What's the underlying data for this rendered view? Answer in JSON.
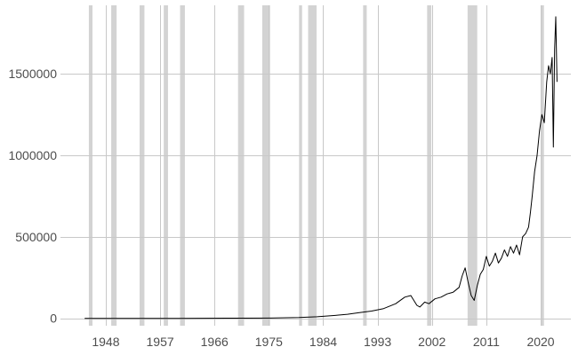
{
  "chart_data": {
    "type": "line",
    "title": "",
    "xlabel": "",
    "ylabel": "",
    "xlim": [
      1940.5,
      2025
    ],
    "ylim": [
      -45000,
      1920000
    ],
    "grid": true,
    "legend": "none",
    "x_ticks": [
      1948,
      1957,
      1966,
      1975,
      1984,
      1993,
      2002,
      2011,
      2020
    ],
    "x_tick_labels": [
      "1948",
      "1957",
      "1966",
      "1975",
      "1984",
      "1993",
      "2002",
      "2011",
      "2020"
    ],
    "y_ticks": [
      0,
      500000,
      1000000,
      1500000
    ],
    "y_tick_labels": [
      "0",
      "500000",
      "1000000",
      "1500000"
    ],
    "recession_bands": [
      [
        1945.2,
        1945.8
      ],
      [
        1948.9,
        1949.8
      ],
      [
        1953.6,
        1954.4
      ],
      [
        1957.6,
        1958.3
      ],
      [
        1960.3,
        1961.1
      ],
      [
        1969.9,
        1970.9
      ],
      [
        1973.9,
        1975.2
      ],
      [
        1980.0,
        1980.5
      ],
      [
        1981.5,
        1982.9
      ],
      [
        1990.6,
        1991.2
      ],
      [
        2001.2,
        2001.9
      ],
      [
        2007.9,
        2009.5
      ],
      [
        2020.1,
        2020.4
      ]
    ],
    "series": [
      {
        "color": "#000000",
        "x": [
          1944.5,
          1950,
          1960,
          1970,
          1975,
          1980,
          1983,
          1986,
          1988,
          1990,
          1992,
          1994,
          1996,
          1997.5,
          1998.5,
          1999.5,
          2000,
          2000.8,
          2001.5,
          2002.5,
          2003.5,
          2004.5,
          2005.5,
          2006.5,
          2007,
          2007.5,
          2008,
          2008.5,
          2009,
          2009.5,
          2010,
          2010.5,
          2011,
          2011.5,
          2012,
          2012.5,
          2013,
          2013.5,
          2014,
          2014.5,
          2015,
          2015.5,
          2016,
          2016.5,
          2017,
          2017.5,
          2018,
          2018.3,
          2018.6,
          2019,
          2019.4,
          2019.8,
          2020.2,
          2020.6,
          2021,
          2021.3,
          2021.6,
          2021.9,
          2022.1,
          2022.3,
          2022.5,
          2022.7
        ],
        "values": [
          0,
          0,
          0,
          1000,
          2000,
          5000,
          10000,
          18000,
          25000,
          35000,
          45000,
          60000,
          90000,
          130000,
          140000,
          80000,
          70000,
          100000,
          90000,
          120000,
          130000,
          150000,
          160000,
          190000,
          260000,
          310000,
          220000,
          140000,
          110000,
          200000,
          270000,
          300000,
          380000,
          320000,
          350000,
          400000,
          340000,
          370000,
          420000,
          380000,
          440000,
          400000,
          450000,
          390000,
          500000,
          520000,
          560000,
          650000,
          750000,
          900000,
          1000000,
          1150000,
          1250000,
          1200000,
          1450000,
          1550000,
          1500000,
          1600000,
          1050000,
          1650000,
          1850000,
          1450000
        ]
      }
    ]
  }
}
